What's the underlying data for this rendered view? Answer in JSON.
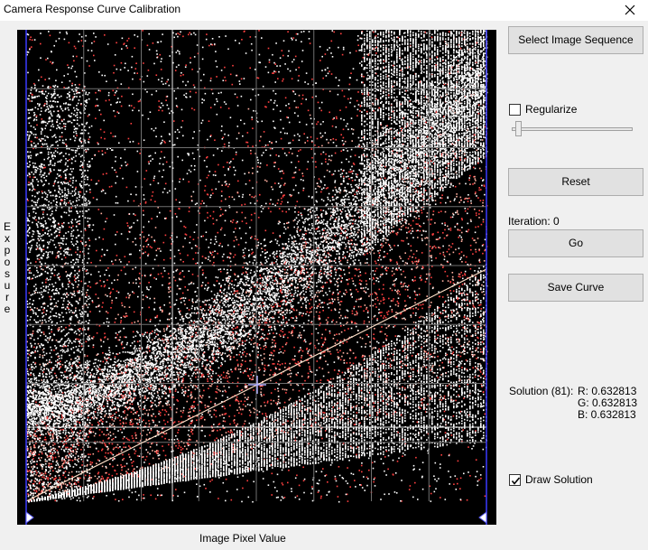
{
  "window": {
    "title": "Camera Response Curve Calibration"
  },
  "plot": {
    "ylabel_letters": [
      "E",
      "x",
      "p",
      "o",
      "s",
      "u",
      "r",
      "e"
    ],
    "xlabel": "Image Pixel Value",
    "background": "#000000",
    "scatter_colors": [
      "#ffffff",
      "#ff4040",
      "#ffb0a0"
    ],
    "grid_color": "#707070",
    "boundary_color": "#3a3aff"
  },
  "controls": {
    "select_button": "Select Image Sequence",
    "regularize_label": "Regularize",
    "regularize_checked": false,
    "regularize_slider_level": 0.03,
    "reset_button": "Reset",
    "iteration_text": "Iteration: 0",
    "go_button": "Go",
    "save_button": "Save Curve",
    "solution_label": "Solution (81):",
    "solution_r": "R: 0.632813",
    "solution_g": "G: 0.632813",
    "solution_b": "B: 0.632813",
    "draw_solution_label": "Draw Solution",
    "draw_solution_checked": true
  }
}
